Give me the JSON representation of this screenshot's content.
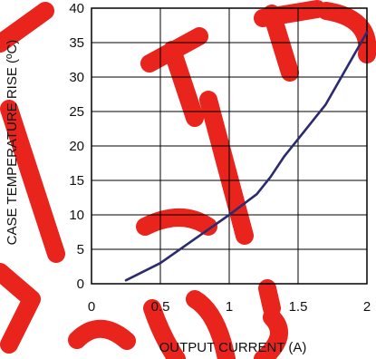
{
  "chart_data": {
    "type": "line",
    "title": "",
    "xlabel": "OUTPUT CURRENT (A)",
    "ylabel": "CASE TEMPERATURE RISE (ºC)",
    "xlim": [
      0,
      2
    ],
    "ylim": [
      0,
      40
    ],
    "xticks": [
      0,
      0.5,
      1,
      1.5,
      2
    ],
    "xtick_labels": [
      "0",
      "0.5",
      "1",
      "1.5",
      "2"
    ],
    "yticks": [
      0,
      5,
      10,
      15,
      20,
      25,
      30,
      35,
      40
    ],
    "ytick_labels": [
      "0",
      "5",
      "10",
      "15",
      "20",
      "25",
      "30",
      "35",
      "40"
    ],
    "grid": true,
    "series": [
      {
        "color": "#2b2b6e",
        "x": [
          0.25,
          0.5,
          0.75,
          1.0,
          1.1,
          1.2,
          1.3,
          1.4,
          1.5,
          1.6,
          1.7,
          1.8,
          1.9,
          2.0
        ],
        "y": [
          0.5,
          3,
          6.5,
          10,
          11.5,
          13,
          15.5,
          18.5,
          21,
          23.5,
          26,
          29.5,
          33,
          36.5
        ]
      }
    ]
  },
  "watermark_color": "#e8241c"
}
